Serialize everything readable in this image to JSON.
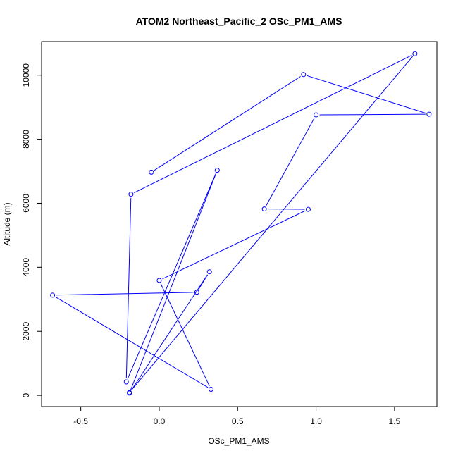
{
  "chart_data": {
    "type": "line",
    "title": "ATOM2 Northeast_Pacific_2 OSc_PM1_AMS",
    "xlabel": "OSc_PM1_AMS",
    "ylabel": "Altitude (m)",
    "xlim": [
      -0.75,
      1.77
    ],
    "ylim": [
      -350,
      11050
    ],
    "x_ticks": [
      -0.5,
      0.0,
      0.5,
      1.0,
      1.5
    ],
    "x_tick_labels": [
      "-0.5",
      "0.0",
      "0.5",
      "1.0",
      "1.5"
    ],
    "y_ticks": [
      0,
      2000,
      4000,
      6000,
      8000,
      10000
    ],
    "y_tick_labels": [
      "0",
      "2000",
      "4000",
      "6000",
      "8000",
      "10000"
    ],
    "grid": false,
    "legend": "none",
    "series": [
      {
        "color": "#0000ff",
        "marker": "open-circle",
        "points": [
          {
            "x": -0.05,
            "y": 6970
          },
          {
            "x": 0.92,
            "y": 10020
          },
          {
            "x": 1.72,
            "y": 8780
          },
          {
            "x": 1.0,
            "y": 8760
          },
          {
            "x": 0.67,
            "y": 5820
          },
          {
            "x": 0.95,
            "y": 5810
          },
          {
            "x": 0.0,
            "y": 3590
          },
          {
            "x": 0.33,
            "y": 190
          },
          {
            "x": -0.68,
            "y": 3130
          },
          {
            "x": 0.24,
            "y": 3220
          },
          {
            "x": 0.32,
            "y": 3860
          },
          {
            "x": -0.19,
            "y": 70
          },
          {
            "x": 0.37,
            "y": 7030
          },
          {
            "x": -0.21,
            "y": 420
          },
          {
            "x": -0.18,
            "y": 6280
          },
          {
            "x": 1.63,
            "y": 10670
          },
          {
            "x": -0.19,
            "y": 90
          }
        ]
      }
    ]
  }
}
